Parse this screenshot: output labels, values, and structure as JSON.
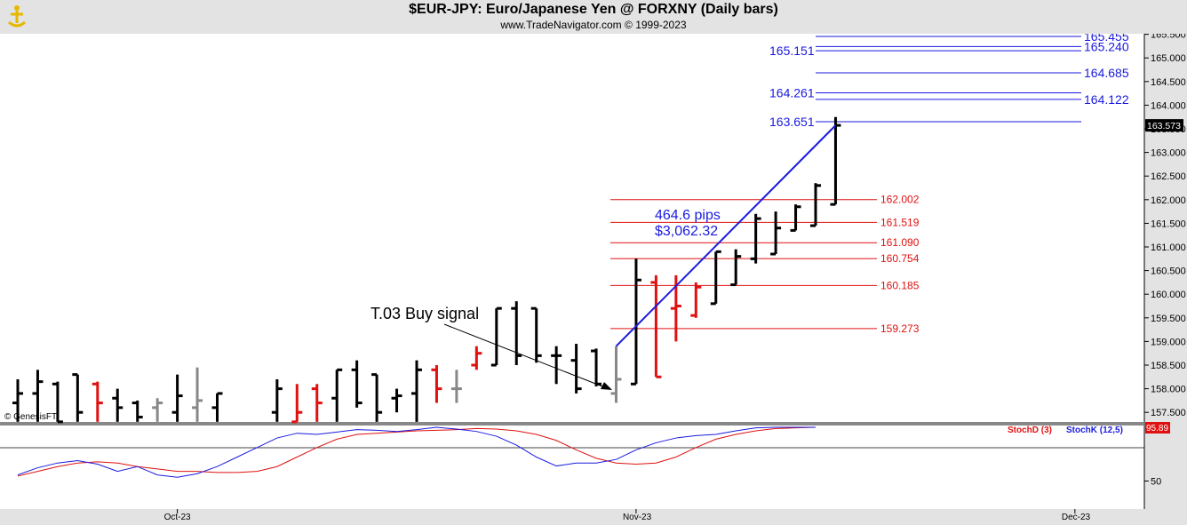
{
  "header": {
    "title": "$EUR-JPY:  Euro/Japanese Yen @ FORXNY  (Daily bars)",
    "subtitle": "www.TradeNavigator.com © 1999-2023",
    "logo_icon": "trade-navigator-logo-icon"
  },
  "watermark": "© GenesisFT",
  "annotations": {
    "signal": "T.03 Buy signal",
    "pips": "464.6 pips",
    "dollars": "$3,062.32"
  },
  "colors": {
    "up_bar": "#000000",
    "down_bar": "#e01010",
    "neutral_bar": "#888888",
    "trend_line": "#1a1adf",
    "level_blue": "#1a1adf",
    "level_red": "#e01010",
    "stochD": "#e01010",
    "stochK": "#1a1adf"
  },
  "chart_data": [
    {
      "type": "ohlc",
      "title": "$EUR-JPY:  Euro/Japanese Yen @ FORXNY  (Daily bars)",
      "ylim": [
        157.4,
        165.7
      ],
      "y_ticks": [
        "165.500",
        "165.000",
        "164.500",
        "164.000",
        "163.500",
        "163.000",
        "162.500",
        "162.000",
        "161.500",
        "161.000",
        "160.500",
        "160.000",
        "159.500",
        "159.000",
        "158.500",
        "158.000",
        "157.500"
      ],
      "x_ticks": [
        {
          "label": "Oct-23",
          "index": 8
        },
        {
          "label": "Nov-23",
          "index": 31
        },
        {
          "label": "Dec-23",
          "index": 53
        }
      ],
      "last_price": "163.573",
      "bars": [
        {
          "h": 158.2,
          "l": 157.3,
          "o": 157.7,
          "c": 157.9,
          "color": "up"
        },
        {
          "h": 158.4,
          "l": 157.3,
          "o": 157.9,
          "c": 158.15,
          "color": "up"
        },
        {
          "h": 158.15,
          "l": 157.3,
          "o": 158.1,
          "c": 157.3,
          "color": "up"
        },
        {
          "h": 158.3,
          "l": 157.3,
          "o": 158.3,
          "c": 157.5,
          "color": "up"
        },
        {
          "h": 158.15,
          "l": 157.3,
          "o": 158.1,
          "c": 157.7,
          "color": "down"
        },
        {
          "h": 158.0,
          "l": 157.3,
          "o": 157.8,
          "c": 157.6,
          "color": "up"
        },
        {
          "h": 157.75,
          "l": 157.3,
          "o": 157.7,
          "c": 157.4,
          "color": "up"
        },
        {
          "h": 157.8,
          "l": 157.3,
          "o": 157.6,
          "c": 157.7,
          "color": "neutral"
        },
        {
          "h": 158.3,
          "l": 157.3,
          "o": 157.5,
          "c": 157.85,
          "color": "up"
        },
        {
          "h": 158.45,
          "l": 157.3,
          "o": 157.6,
          "c": 157.75,
          "color": "neutral"
        },
        {
          "h": 157.9,
          "l": 157.3,
          "o": 157.6,
          "c": 157.9,
          "color": "up"
        },
        {
          "h": 157.3,
          "l": 157.3,
          "o": 157.3,
          "c": 157.3,
          "color": "up"
        },
        {
          "h": 157.3,
          "l": 157.3,
          "o": 157.3,
          "c": 157.3,
          "color": "up"
        },
        {
          "h": 158.2,
          "l": 157.3,
          "o": 157.5,
          "c": 158.0,
          "color": "up"
        },
        {
          "h": 158.1,
          "l": 157.3,
          "o": 157.3,
          "c": 157.5,
          "color": "down"
        },
        {
          "h": 158.1,
          "l": 157.3,
          "o": 158.0,
          "c": 157.7,
          "color": "down"
        },
        {
          "h": 158.4,
          "l": 157.3,
          "o": 157.8,
          "c": 158.4,
          "color": "up"
        },
        {
          "h": 158.6,
          "l": 157.6,
          "o": 158.4,
          "c": 157.7,
          "color": "up"
        },
        {
          "h": 158.3,
          "l": 157.3,
          "o": 158.3,
          "c": 157.5,
          "color": "up"
        },
        {
          "h": 158.0,
          "l": 157.5,
          "o": 157.8,
          "c": 157.85,
          "color": "up"
        },
        {
          "h": 158.6,
          "l": 157.3,
          "o": 157.9,
          "c": 158.4,
          "color": "up"
        },
        {
          "h": 158.5,
          "l": 157.7,
          "o": 158.4,
          "c": 158.0,
          "color": "down"
        },
        {
          "h": 158.4,
          "l": 157.7,
          "o": 158.0,
          "c": 158.0,
          "color": "neutral"
        },
        {
          "h": 158.9,
          "l": 158.4,
          "o": 158.5,
          "c": 158.75,
          "color": "down"
        },
        {
          "h": 159.7,
          "l": 158.5,
          "o": 158.5,
          "c": 159.7,
          "color": "up"
        },
        {
          "h": 159.85,
          "l": 158.5,
          "o": 159.7,
          "c": 158.7,
          "color": "up"
        },
        {
          "h": 159.7,
          "l": 158.55,
          "o": 159.7,
          "c": 158.7,
          "color": "up"
        },
        {
          "h": 158.9,
          "l": 158.1,
          "o": 158.7,
          "c": 158.7,
          "color": "up"
        },
        {
          "h": 158.95,
          "l": 157.9,
          "o": 158.6,
          "c": 158.0,
          "color": "up"
        },
        {
          "h": 158.85,
          "l": 158.05,
          "o": 158.8,
          "c": 158.1,
          "color": "up"
        },
        {
          "h": 158.9,
          "l": 157.7,
          "o": 157.9,
          "c": 158.2,
          "color": "neutral"
        },
        {
          "h": 160.75,
          "l": 158.1,
          "o": 158.1,
          "c": 160.3,
          "color": "up"
        },
        {
          "h": 160.4,
          "l": 158.25,
          "o": 160.25,
          "c": 158.25,
          "color": "down"
        },
        {
          "h": 160.4,
          "l": 159.0,
          "o": 159.7,
          "c": 159.75,
          "color": "down"
        },
        {
          "h": 160.25,
          "l": 159.5,
          "o": 159.55,
          "c": 160.15,
          "color": "down"
        },
        {
          "h": 160.9,
          "l": 159.8,
          "o": 159.8,
          "c": 160.9,
          "color": "up"
        },
        {
          "h": 160.95,
          "l": 160.2,
          "o": 160.2,
          "c": 160.8,
          "color": "up"
        },
        {
          "h": 161.7,
          "l": 160.65,
          "o": 160.75,
          "c": 161.6,
          "color": "up"
        },
        {
          "h": 161.75,
          "l": 160.85,
          "o": 160.85,
          "c": 161.4,
          "color": "up"
        },
        {
          "h": 161.9,
          "l": 161.35,
          "o": 161.35,
          "c": 161.85,
          "color": "up"
        },
        {
          "h": 162.35,
          "l": 161.45,
          "o": 161.45,
          "c": 162.3,
          "color": "up"
        },
        {
          "h": 163.75,
          "l": 161.9,
          "o": 161.9,
          "c": 163.573,
          "color": "up"
        }
      ],
      "trend_line": {
        "from_bar": 30,
        "from_price": 158.9,
        "to_bar": 41,
        "to_price": 163.573
      },
      "levels_blue": [
        165.455,
        165.24,
        165.151,
        164.685,
        164.261,
        164.122,
        163.651
      ],
      "levels_red": [
        162.002,
        161.519,
        161.09,
        160.754,
        160.185,
        159.273
      ]
    },
    {
      "type": "line",
      "series": [
        {
          "name": "StochD (3)",
          "values": [
            18,
            26,
            34,
            40,
            42,
            40,
            34,
            30,
            26,
            26,
            24,
            24,
            26,
            34,
            50,
            66,
            80,
            88,
            90,
            92,
            94,
            95,
            96,
            98,
            97,
            94,
            88,
            78,
            62,
            48,
            40,
            38,
            40,
            50,
            66,
            80,
            88,
            94,
            98,
            99,
            100
          ]
        },
        {
          "name": "StochK (12,5)",
          "values": [
            20,
            32,
            40,
            44,
            38,
            26,
            34,
            20,
            16,
            22,
            34,
            50,
            66,
            82,
            90,
            88,
            92,
            96,
            95,
            93,
            96,
            100,
            97,
            93,
            85,
            70,
            50,
            35,
            40,
            40,
            46,
            62,
            74,
            82,
            86,
            88,
            94,
            99,
            100,
            100,
            100
          ]
        }
      ],
      "last_value": "95.89",
      "y_ticks": [
        "50"
      ]
    }
  ]
}
